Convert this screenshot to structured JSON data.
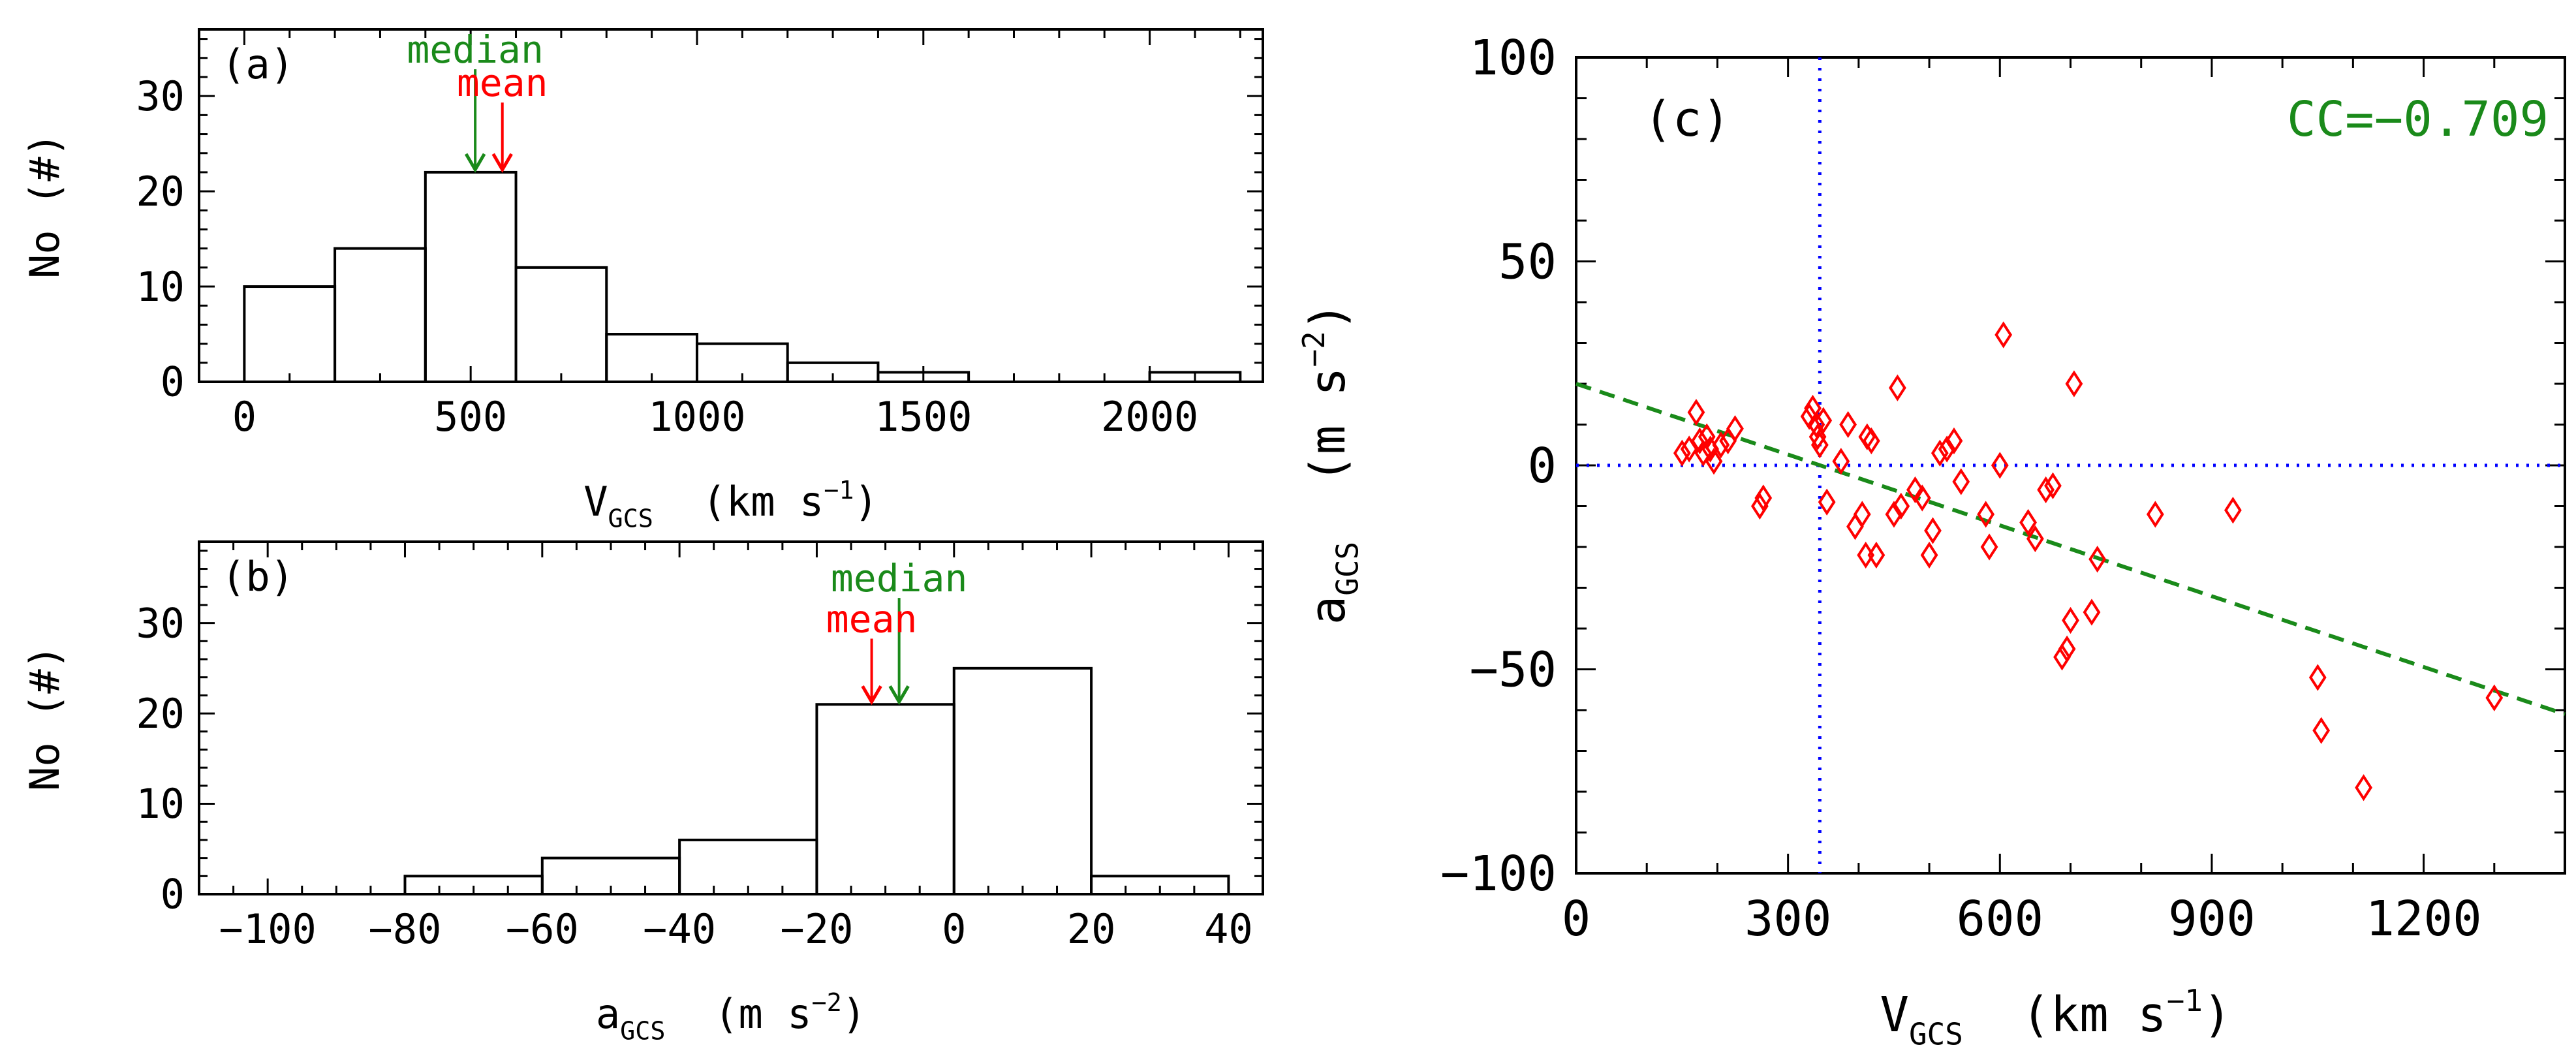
{
  "colors": {
    "black": "#000000",
    "red": "#ff0000",
    "green": "#1a8a1a",
    "blue": "#0000ff",
    "background": "#ffffff"
  },
  "chart_data": [
    {
      "id": "a",
      "type": "bar",
      "panel_label": "(a)",
      "xlabel": {
        "main": "V",
        "sub": "GCS",
        "units_open": "(km s",
        "sup": "−1",
        "units_close": ")"
      },
      "ylabel": "No  (#)",
      "xlim": [
        -100,
        2250
      ],
      "ylim": [
        0,
        37
      ],
      "xticks": [
        0,
        500,
        1000,
        1500,
        2000
      ],
      "xtick_labels": [
        "0",
        "500",
        "1000",
        "1500",
        "2000"
      ],
      "yticks": [
        0,
        10,
        20,
        30
      ],
      "ytick_labels": [
        "0",
        "10",
        "20",
        "30"
      ],
      "bins": [
        {
          "x0": 0,
          "x1": 200,
          "count": 10
        },
        {
          "x0": 200,
          "x1": 400,
          "count": 14
        },
        {
          "x0": 400,
          "x1": 600,
          "count": 22
        },
        {
          "x0": 600,
          "x1": 800,
          "count": 12
        },
        {
          "x0": 800,
          "x1": 1000,
          "count": 5
        },
        {
          "x0": 1000,
          "x1": 1200,
          "count": 4
        },
        {
          "x0": 1200,
          "x1": 1400,
          "count": 2
        },
        {
          "x0": 1400,
          "x1": 1600,
          "count": 1
        },
        {
          "x0": 1600,
          "x1": 1800,
          "count": 0
        },
        {
          "x0": 1800,
          "x1": 2000,
          "count": 0
        },
        {
          "x0": 2000,
          "x1": 2200,
          "count": 1
        }
      ],
      "annotations": [
        {
          "label": "median",
          "value": 510,
          "color": "green",
          "label_level": 33.5
        },
        {
          "label": "mean",
          "value": 570,
          "color": "red",
          "label_level": 30
        }
      ]
    },
    {
      "id": "b",
      "type": "bar",
      "panel_label": "(b)",
      "xlabel": {
        "main": "a",
        "sub": "GCS",
        "units_open": "(m s",
        "sup": "−2",
        "units_close": ")"
      },
      "ylabel": "No  (#)",
      "xlim": [
        -110,
        45
      ],
      "ylim": [
        0,
        39
      ],
      "xticks": [
        -100,
        -80,
        -60,
        -40,
        -20,
        0,
        20,
        40
      ],
      "xtick_labels": [
        "−100",
        "−80",
        "−60",
        "−40",
        "−20",
        "0",
        "20",
        "40"
      ],
      "yticks": [
        0,
        10,
        20,
        30
      ],
      "ytick_labels": [
        "0",
        "10",
        "20",
        "30"
      ],
      "bins": [
        {
          "x0": -80,
          "x1": -60,
          "count": 2
        },
        {
          "x0": -60,
          "x1": -40,
          "count": 4
        },
        {
          "x0": -40,
          "x1": -20,
          "count": 6
        },
        {
          "x0": -20,
          "x1": 0,
          "count": 21
        },
        {
          "x0": 0,
          "x1": 20,
          "count": 25
        },
        {
          "x0": 20,
          "x1": 40,
          "count": 2
        }
      ],
      "annotations": [
        {
          "label": "median",
          "value": -8,
          "color": "green",
          "label_level": 33.5
        },
        {
          "label": "mean",
          "value": -12,
          "color": "red",
          "label_level": 29
        }
      ]
    },
    {
      "id": "c",
      "type": "scatter",
      "panel_label": "(c)",
      "annotation": "CC=−0.709",
      "xlabel": {
        "main": "V",
        "sub": "GCS",
        "units_open": "(km s",
        "sup": "−1",
        "units_close": ")"
      },
      "ylabel": {
        "main": "a",
        "sub": "GCS",
        "units_open": "(m s",
        "sup": "−2",
        "units_close": ")"
      },
      "xlim": [
        0,
        1400
      ],
      "ylim": [
        -100,
        100
      ],
      "xticks": [
        0,
        300,
        600,
        900,
        1200
      ],
      "xtick_labels": [
        "0",
        "300",
        "600",
        "900",
        "1200"
      ],
      "yticks": [
        -100,
        -50,
        0,
        50,
        100
      ],
      "ytick_labels": [
        "−100",
        "−50",
        "0",
        "50",
        "100"
      ],
      "ref_lines": {
        "vertical_x": 345,
        "horizontal_y": 0
      },
      "fit_line": {
        "x0": 0,
        "y0": 20,
        "x1": 1400,
        "y1": -61
      },
      "points": [
        [
          150,
          3
        ],
        [
          160,
          4
        ],
        [
          170,
          13
        ],
        [
          175,
          6
        ],
        [
          180,
          3
        ],
        [
          185,
          7
        ],
        [
          190,
          4
        ],
        [
          195,
          1
        ],
        [
          205,
          5
        ],
        [
          215,
          6
        ],
        [
          225,
          9
        ],
        [
          260,
          -10
        ],
        [
          265,
          -8
        ],
        [
          330,
          12
        ],
        [
          335,
          14
        ],
        [
          340,
          10
        ],
        [
          342,
          7
        ],
        [
          345,
          5
        ],
        [
          350,
          11
        ],
        [
          355,
          -9
        ],
        [
          375,
          1
        ],
        [
          385,
          10
        ],
        [
          395,
          -15
        ],
        [
          405,
          -12
        ],
        [
          410,
          -22
        ],
        [
          412,
          7
        ],
        [
          418,
          6
        ],
        [
          425,
          -22
        ],
        [
          450,
          -12
        ],
        [
          455,
          19
        ],
        [
          460,
          -10
        ],
        [
          480,
          -6
        ],
        [
          490,
          -8
        ],
        [
          500,
          -22
        ],
        [
          505,
          -16
        ],
        [
          515,
          3
        ],
        [
          525,
          4
        ],
        [
          535,
          6
        ],
        [
          545,
          -4
        ],
        [
          580,
          -12
        ],
        [
          585,
          -20
        ],
        [
          600,
          0
        ],
        [
          605,
          32
        ],
        [
          640,
          -14
        ],
        [
          650,
          -18
        ],
        [
          665,
          -6
        ],
        [
          675,
          -5
        ],
        [
          688,
          -47
        ],
        [
          695,
          -45
        ],
        [
          700,
          -38
        ],
        [
          705,
          20
        ],
        [
          730,
          -36
        ],
        [
          738,
          -23
        ],
        [
          820,
          -12
        ],
        [
          930,
          -11
        ],
        [
          1050,
          -52
        ],
        [
          1055,
          -65
        ],
        [
          1115,
          -79
        ],
        [
          1300,
          -57
        ]
      ]
    }
  ]
}
